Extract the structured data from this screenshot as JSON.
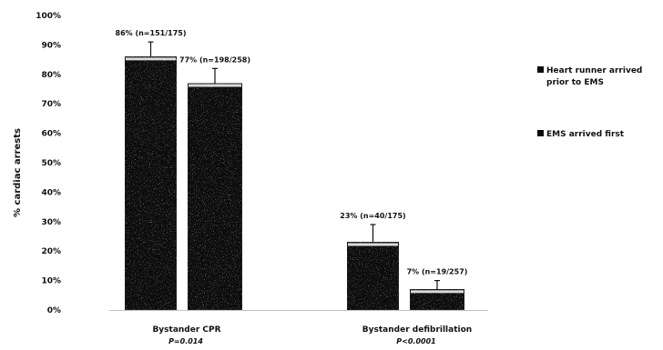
{
  "chart_data": {
    "type": "bar",
    "title": "",
    "xlabel": "",
    "ylabel": "% cardiac arrests",
    "ylim": [
      0,
      100
    ],
    "ytick_labels": [
      "0%",
      "10%",
      "20%",
      "30%",
      "40%",
      "50%",
      "60%",
      "70%",
      "80%",
      "90%",
      "100%"
    ],
    "categories": [
      {
        "label": "Bystander CPR",
        "p_value": "P=0.014"
      },
      {
        "label": "Bystander defibrillation",
        "p_value": "P<0.0001"
      }
    ],
    "series": [
      {
        "name": "Heart runner arrived prior to EMS",
        "legend_lines": [
          "Heart runner arrived",
          "prior to EMS"
        ],
        "values": [
          86,
          23
        ],
        "error_upper": [
          91,
          29
        ],
        "data_labels": [
          "86% (n=151/175)",
          "23% (n=40/175)"
        ]
      },
      {
        "name": "EMS arrived first",
        "legend_lines": [
          "EMS arrived first"
        ],
        "values": [
          77,
          7
        ],
        "error_upper": [
          82,
          10
        ],
        "data_labels": [
          "77% (n=198/258)",
          "7% (n=19/257)"
        ]
      }
    ],
    "grid": false,
    "legend_position": "right",
    "colors": {
      "bar_fill": "#0d0d0d",
      "bar_edge": "#222222",
      "axis": "#111111"
    }
  }
}
